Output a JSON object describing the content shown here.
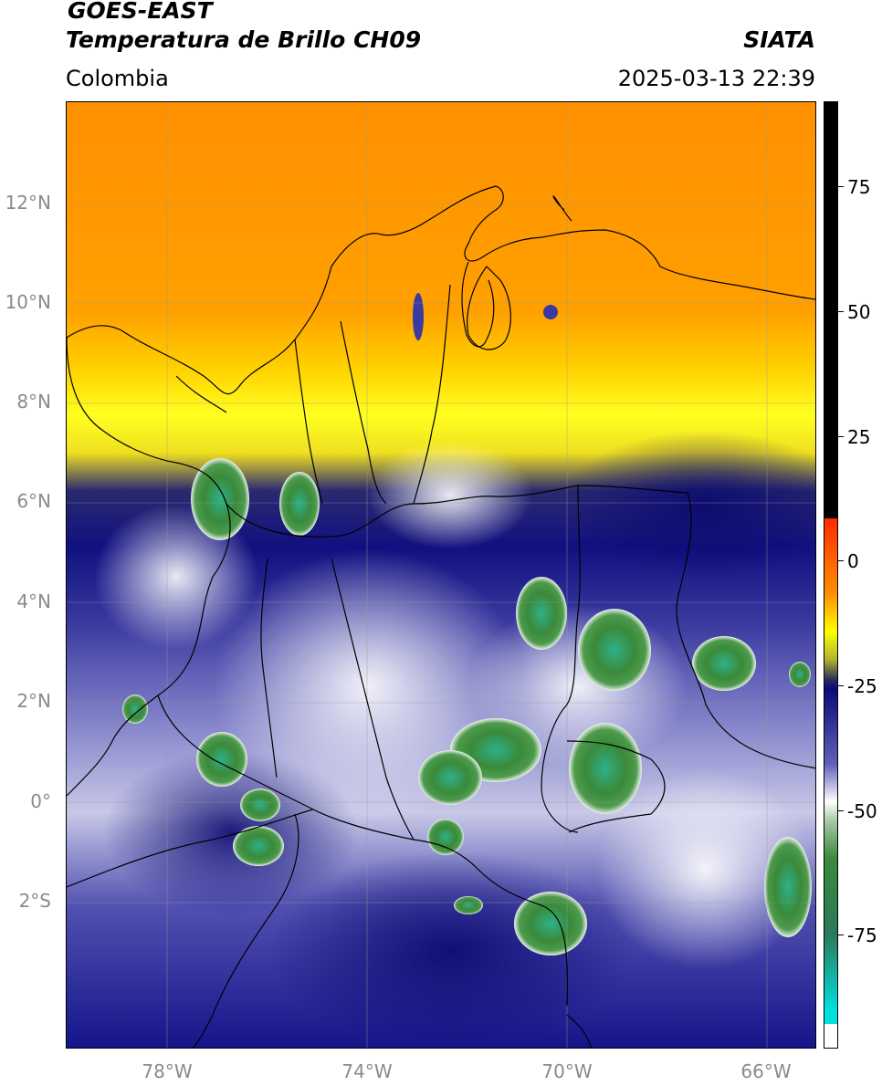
{
  "header": {
    "satellite": "GOES-EAST",
    "product": "Temperatura de Brillo CH09",
    "agency": "SIATA",
    "region": "Colombia",
    "timestamp": "2025-03-13 22:39"
  },
  "map": {
    "lat_ticks": [
      "12°N",
      "10°N",
      "8°N",
      "6°N",
      "4°N",
      "2°N",
      "0°",
      "2°S"
    ],
    "lon_ticks": [
      "78°W",
      "74°W",
      "70°W",
      "66°W"
    ]
  },
  "colorbar": {
    "ticks": [
      "75",
      "50",
      "25",
      "0",
      "-25",
      "-50",
      "-75"
    ],
    "colors": {
      "black": "#000000",
      "red": "#ff2a00",
      "orange": "#ff9000",
      "yellow": "#ffff00",
      "navy": "#0b0b78",
      "white": "#ffffff",
      "green": "#3a8a3a",
      "cyan": "#00e0e0"
    }
  }
}
